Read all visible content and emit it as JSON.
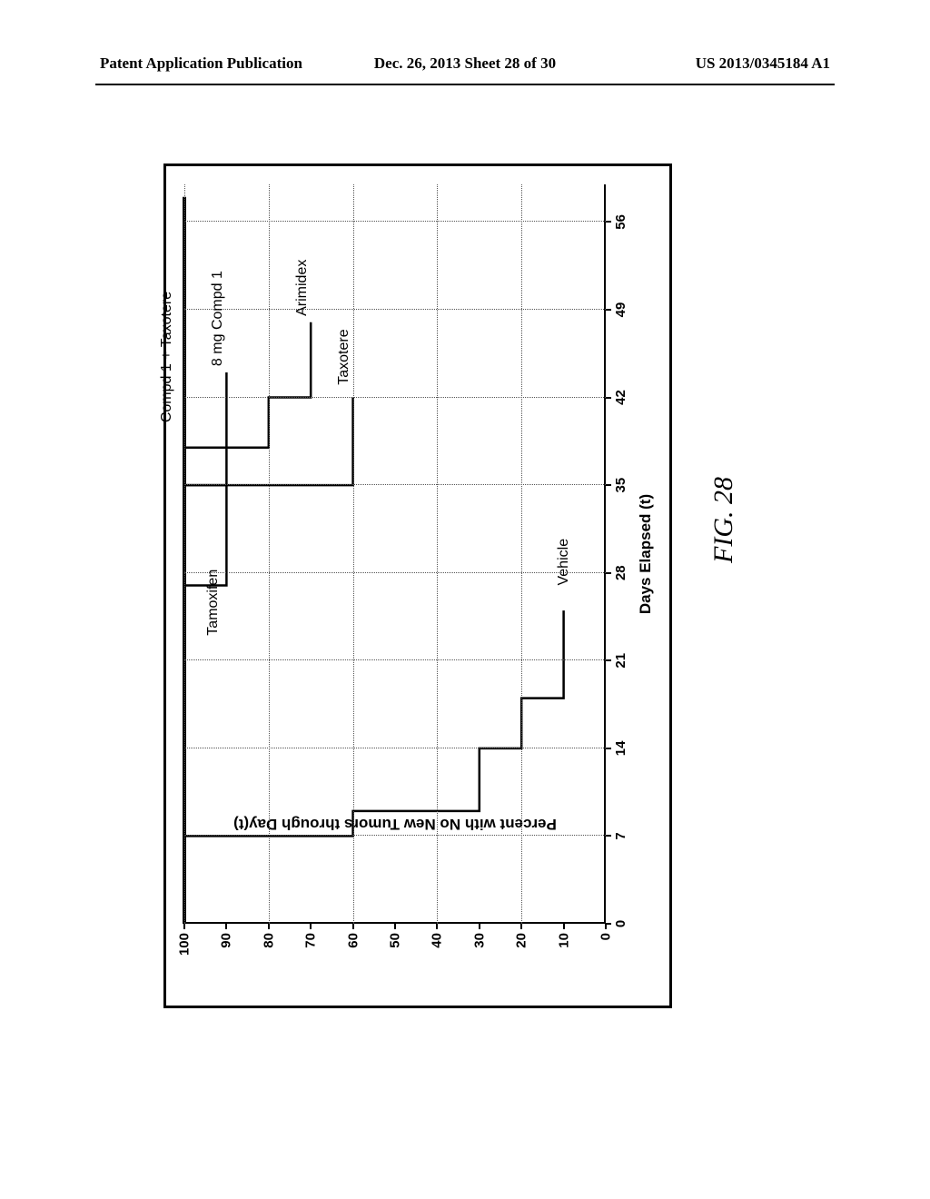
{
  "header": {
    "left": "Patent Application Publication",
    "center": "Dec. 26, 2013  Sheet 28 of 30",
    "right": "US 2013/0345184 A1"
  },
  "figure": {
    "caption": "FIG. 28",
    "chart": {
      "type": "step-line",
      "x_axis": {
        "title": "Days Elapsed (t)",
        "min": 0,
        "max": 59,
        "ticks": [
          0,
          7,
          14,
          21,
          28,
          35,
          42,
          49,
          56
        ],
        "title_fontsize": 17,
        "tick_fontsize": 15
      },
      "y_axis": {
        "title": "Percent with No New Tumors through Day(t)",
        "min": 0,
        "max": 100,
        "ticks": [
          0,
          10,
          20,
          30,
          40,
          50,
          60,
          70,
          80,
          90,
          100
        ],
        "title_fontsize": 17,
        "tick_fontsize": 15
      },
      "grid": {
        "color": "#555555",
        "style": "dotted",
        "h_at": [
          20,
          40,
          60,
          80,
          100
        ],
        "v_at": [
          7,
          14,
          21,
          28,
          35,
          42,
          49,
          56
        ]
      },
      "line_color": "#000000",
      "line_width": 2.5,
      "series": [
        {
          "name": "Vehicle",
          "points": [
            {
              "x": 0,
              "y": 100
            },
            {
              "x": 7,
              "y": 60
            },
            {
              "x": 9,
              "y": 30
            },
            {
              "x": 14,
              "y": 20
            },
            {
              "x": 18,
              "y": 10
            },
            {
              "x": 25,
              "y": 10
            }
          ],
          "label_at": {
            "x": 27,
            "y": 10
          }
        },
        {
          "name": "Taxotere",
          "points": [
            {
              "x": 0,
              "y": 100
            },
            {
              "x": 35,
              "y": 60
            },
            {
              "x": 42,
              "y": 60
            }
          ],
          "label_at": {
            "x": 43,
            "y": 62
          }
        },
        {
          "name": "Arimidex",
          "points": [
            {
              "x": 0,
              "y": 100
            },
            {
              "x": 38,
              "y": 80
            },
            {
              "x": 42,
              "y": 70
            },
            {
              "x": 48,
              "y": 70
            }
          ],
          "label_at": {
            "x": 48.5,
            "y": 72
          }
        },
        {
          "name": "Tamoxifen",
          "points": [
            {
              "x": 0,
              "y": 100
            },
            {
              "x": 27,
              "y": 90
            },
            {
              "x": 35,
              "y": 90
            }
          ],
          "label_at": {
            "x": 23,
            "y": 93
          }
        },
        {
          "name": "8 mg Compd 1",
          "points": [
            {
              "x": 0,
              "y": 100
            },
            {
              "x": 35,
              "y": 90
            },
            {
              "x": 44,
              "y": 90
            }
          ],
          "label_at": {
            "x": 44.5,
            "y": 92
          }
        },
        {
          "name": "Compd 1 + Taxotere",
          "points": [
            {
              "x": 0,
              "y": 100
            },
            {
              "x": 58,
              "y": 100
            }
          ],
          "label_at": {
            "x": 40,
            "y": 104
          }
        }
      ],
      "background_color": "#ffffff",
      "border_color": "#000000"
    }
  }
}
